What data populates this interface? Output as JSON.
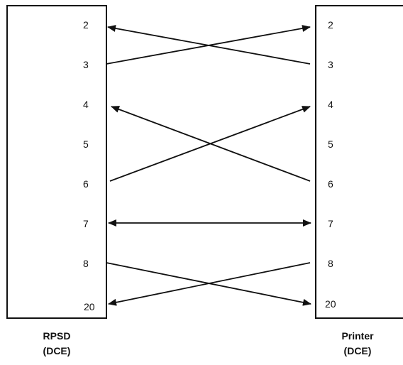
{
  "left_device": {
    "name": "RPSD",
    "type": "(DCE)",
    "pins": [
      "2",
      "3",
      "4",
      "5",
      "6",
      "7",
      "8",
      "20"
    ]
  },
  "right_device": {
    "name": "Printer",
    "type": "(DCE)",
    "pins": [
      "2",
      "3",
      "4",
      "5",
      "6",
      "7",
      "8",
      "20"
    ]
  },
  "connections": [
    {
      "from": "3",
      "to": "2",
      "head": "right"
    },
    {
      "from": "3",
      "to": "2",
      "head": "left"
    },
    {
      "from": "6",
      "to": "4",
      "head": "right"
    },
    {
      "from": "6",
      "to": "4",
      "head": "left"
    },
    {
      "from": "7",
      "to": "7",
      "head": "both"
    },
    {
      "from": "8",
      "to": "20",
      "head": "right"
    },
    {
      "from": "8",
      "to": "20",
      "head": "left"
    }
  ],
  "colors": {
    "line": "#111111",
    "background": "#ffffff"
  }
}
